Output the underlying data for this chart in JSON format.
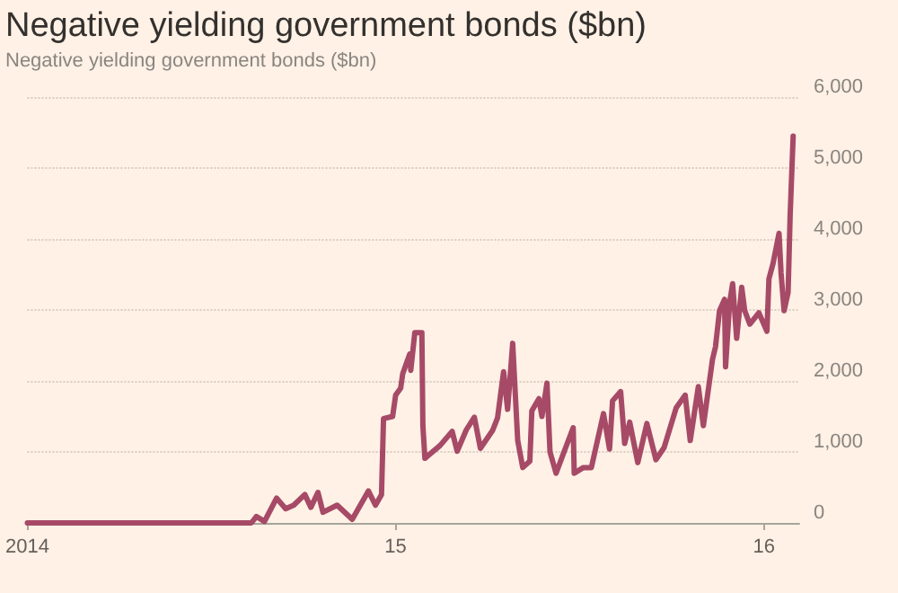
{
  "chart_data": {
    "type": "line",
    "title": "Negative yielding government bonds ($bn)",
    "subtitle": "Negative yielding government bonds ($bn)",
    "xlim": [
      "2014-01-01",
      "2016-02-05"
    ],
    "xticks": [
      {
        "value": "2014-01-01",
        "label": "2014"
      },
      {
        "value": "2015-01-01",
        "label": "15"
      },
      {
        "value": "2016-01-01",
        "label": "16"
      }
    ],
    "ylim": [
      0,
      6000
    ],
    "yticks": [
      0,
      {
        "value": 1000,
        "label": "1,000"
      },
      {
        "value": 2000,
        "label": "2,000"
      },
      {
        "value": 3000,
        "label": "3,000"
      },
      {
        "value": 4000,
        "label": "4,000"
      },
      {
        "value": 5000,
        "label": "5,000"
      },
      {
        "value": 6000,
        "label": "6,000"
      }
    ],
    "grid": "y",
    "marker": "none",
    "line_style": "solid",
    "series": [
      {
        "color": "#a64a67",
        "x": [
          "2014-01-01",
          "2014-08-11",
          "2014-08-16",
          "2014-08-24",
          "2014-09-05",
          "2014-09-14",
          "2014-09-22",
          "2014-10-03",
          "2014-10-09",
          "2014-10-16",
          "2014-10-21",
          "2014-11-04",
          "2014-11-19",
          "2014-12-05",
          "2014-12-12",
          "2014-12-18",
          "2014-12-20",
          "2014-12-29",
          "2015-01-01",
          "2015-01-06",
          "2015-01-08",
          "2015-01-15",
          "2015-01-16",
          "2015-01-20",
          "2015-01-27",
          "2015-01-28",
          "2015-01-30",
          "2015-02-14",
          "2015-02-26",
          "2015-03-03",
          "2015-03-12",
          "2015-03-20",
          "2015-03-26",
          "2015-04-07",
          "2015-04-12",
          "2015-04-18",
          "2015-04-22",
          "2015-04-27",
          "2015-05-02",
          "2015-05-07",
          "2015-05-14",
          "2015-05-16",
          "2015-05-23",
          "2015-05-26",
          "2015-05-31",
          "2015-06-03",
          "2015-06-09",
          "2015-06-19",
          "2015-06-26",
          "2015-06-27",
          "2015-07-06",
          "2015-07-14",
          "2015-07-26",
          "2015-08-01",
          "2015-08-04",
          "2015-08-12",
          "2015-08-16",
          "2015-08-21",
          "2015-08-29",
          "2015-09-07",
          "2015-09-16",
          "2015-09-24",
          "2015-10-06",
          "2015-10-15",
          "2015-10-20",
          "2015-10-28",
          "2015-11-02",
          "2015-11-11",
          "2015-11-14",
          "2015-11-18",
          "2015-11-23",
          "2015-11-24",
          "2015-11-28",
          "2015-12-01",
          "2015-12-05",
          "2015-12-10",
          "2015-12-13",
          "2015-12-18",
          "2015-12-27",
          "2016-01-04",
          "2016-01-06",
          "2016-01-10",
          "2016-01-16",
          "2016-01-18",
          "2016-01-21",
          "2016-01-25",
          "2016-01-27",
          "2016-01-30"
        ],
        "values": [
          0,
          0,
          90,
          20,
          350,
          200,
          250,
          400,
          220,
          430,
          150,
          250,
          50,
          450,
          250,
          400,
          1470,
          1500,
          1800,
          1900,
          2100,
          2380,
          2150,
          2680,
          2680,
          1370,
          910,
          1090,
          1290,
          1010,
          1310,
          1490,
          1050,
          1300,
          1480,
          2130,
          1600,
          2530,
          1160,
          780,
          870,
          1580,
          1750,
          1500,
          1970,
          1000,
          700,
          1080,
          1340,
          700,
          780,
          780,
          1540,
          1040,
          1720,
          1850,
          1120,
          1420,
          850,
          1400,
          890,
          1060,
          1620,
          1800,
          1160,
          1920,
          1370,
          2300,
          2480,
          2990,
          3150,
          2200,
          3100,
          3370,
          2600,
          3320,
          2990,
          2800,
          2960,
          2700,
          3440,
          3650,
          4080,
          3520,
          2990,
          3250,
          4330,
          5450
        ]
      }
    ]
  }
}
